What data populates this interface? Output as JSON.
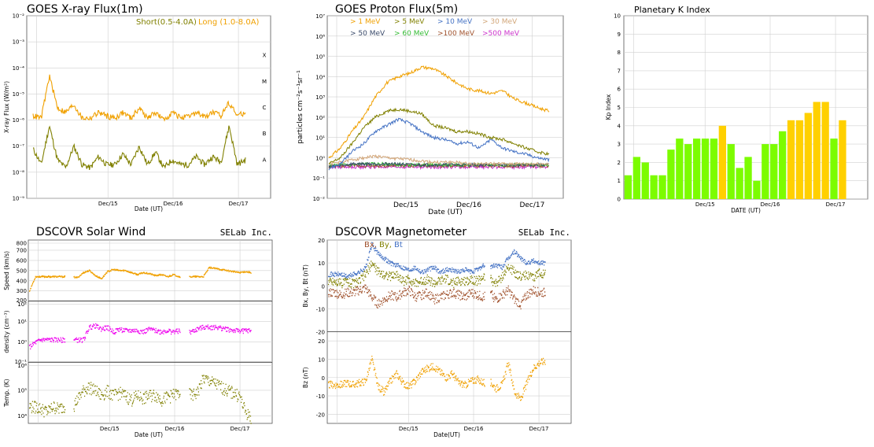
{
  "chart_data": [
    {
      "id": "xray",
      "type": "line",
      "title": "GOES X-ray Flux(1m)",
      "xlabel": "Date (UT)",
      "ylabel": "X-ray Flux (W/m²)",
      "scale": "log",
      "ylim": [
        1e-09,
        0.01
      ],
      "yticks": [
        "10⁻⁹",
        "10⁻⁸",
        "10⁻⁷",
        "10⁻⁶",
        "10⁻⁵",
        "10⁻⁴",
        "10⁻³",
        "10⁻²"
      ],
      "xticks": [
        "Dec/15",
        "Dec/16",
        "Dec/17"
      ],
      "class_labels": [
        "A",
        "B",
        "C",
        "M",
        "X"
      ],
      "legend_placement": "top-right",
      "series": [
        {
          "name": "Short(0.5-4.0A)",
          "color": "#808000",
          "values": [
            8e-08,
            2e-08,
            6e-07,
            3e-08,
            1.5e-08,
            1e-07,
            2e-08,
            1.5e-08,
            4e-08,
            2e-08,
            2e-08,
            5e-08,
            2e-08,
            1e-07,
            2e-08,
            6e-08,
            1.5e-08,
            3e-08,
            2e-08,
            2e-08,
            4e-08,
            2e-08,
            4e-08,
            2.5e-08,
            6e-07,
            2e-08,
            3e-08
          ]
        },
        {
          "name": "Long (1.0-8.0A)",
          "color": "#f0a000",
          "values": [
            1.5e-06,
            1.2e-06,
            5e-05,
            3e-06,
            2e-06,
            4e-06,
            1.2e-06,
            1.2e-06,
            2e-06,
            1.5e-06,
            1.2e-06,
            2e-06,
            1.2e-06,
            3e-06,
            1.2e-06,
            2e-06,
            1e-06,
            2e-06,
            1.3e-06,
            1.3e-06,
            2e-06,
            1.3e-06,
            2e-06,
            1.5e-06,
            5e-06,
            1.5e-06,
            2e-06
          ]
        }
      ]
    },
    {
      "id": "proton",
      "type": "line",
      "title": "GOES Proton Flux(5m)",
      "xlabel": "Date (UT)",
      "ylabel": "particles cm⁻²s⁻¹sr⁻¹",
      "scale": "log",
      "ylim": [
        0.01,
        10000000
      ],
      "yticks": [
        "10⁻²",
        "10⁻¹",
        "10⁰",
        "10¹",
        "10²",
        "10³",
        "10⁴",
        "10⁵",
        "10⁶",
        "10⁷"
      ],
      "xticks": [
        "Dec/15",
        "Dec/16",
        "Dec/17"
      ],
      "legend_placement": "top",
      "series": [
        {
          "name": "> 1 MeV",
          "color": "#f0a000",
          "values": [
            1,
            3,
            20,
            100,
            1000,
            5000,
            10000,
            15000,
            30000,
            25000,
            12000,
            5000,
            2500,
            2000,
            1500,
            2000,
            800,
            500,
            300,
            200
          ]
        },
        {
          "name": "> 5 MeV",
          "color": "#808000",
          "values": [
            0.5,
            1,
            5,
            30,
            100,
            200,
            250,
            200,
            150,
            40,
            30,
            20,
            20,
            15,
            10,
            8,
            5,
            3,
            2,
            1.5
          ]
        },
        {
          "name": "> 10 MeV",
          "color": "#4472c4",
          "values": [
            0.3,
            0.5,
            2,
            5,
            20,
            40,
            80,
            50,
            20,
            10,
            8,
            5,
            6,
            3,
            8,
            3,
            2,
            1.5,
            1,
            0.8
          ]
        },
        {
          "name": "> 30 MeV",
          "color": "#d2a679",
          "values": [
            0.5,
            0.6,
            0.8,
            1,
            1.2,
            1,
            0.9,
            0.8,
            0.7,
            0.6,
            0.6,
            0.6,
            0.5,
            0.5,
            0.5,
            0.5,
            0.5,
            0.5,
            0.5,
            0.5
          ]
        },
        {
          "name": "> 50 MeV",
          "color": "#3a4a6a",
          "values": [
            0.4,
            0.4,
            0.5,
            0.5,
            0.5,
            0.5,
            0.5,
            0.45,
            0.45,
            0.45,
            0.45,
            0.45,
            0.45,
            0.45,
            0.45,
            0.45,
            0.45,
            0.45,
            0.45,
            0.45
          ]
        },
        {
          "name": "> 60 MeV",
          "color": "#33bb33",
          "values": [
            0.4,
            0.45,
            0.45,
            0.5,
            0.5,
            0.5,
            0.45,
            0.45,
            0.45,
            0.45,
            0.45,
            0.45,
            0.45,
            0.45,
            0.45,
            0.45,
            0.45,
            0.45,
            0.45,
            0.45
          ]
        },
        {
          "name": ">100 MeV",
          "color": "#a0522d",
          "values": [
            0.35,
            0.4,
            0.4,
            0.4,
            0.4,
            0.4,
            0.4,
            0.4,
            0.4,
            0.4,
            0.4,
            0.4,
            0.4,
            0.4,
            0.4,
            0.4,
            0.4,
            0.4,
            0.4,
            0.4
          ]
        },
        {
          "name": ">500 MeV",
          "color": "#cc33cc",
          "values": [
            0.35,
            0.35,
            0.35,
            0.35,
            0.35,
            0.35,
            0.35,
            0.35,
            0.35,
            0.35,
            0.35,
            0.35,
            0.35,
            0.35,
            0.35,
            0.35,
            0.35,
            0.35,
            0.35,
            0.35
          ]
        }
      ]
    },
    {
      "id": "kp",
      "type": "bar",
      "title": "Planetary K Index",
      "xlabel": "DATE (UT)",
      "ylabel": "Kp Index",
      "ylim": [
        0,
        10
      ],
      "yticks": [
        "0",
        "1",
        "2",
        "3",
        "4",
        "5",
        "6",
        "7",
        "8",
        "9",
        "10"
      ],
      "xticks": [
        "Dec/15",
        "Dec/16",
        "Dec/17"
      ],
      "colors": {
        "quiet": "#7cfc00",
        "active": "#ffd000"
      },
      "values": [
        1.3,
        2.3,
        2.0,
        1.3,
        1.3,
        2.7,
        3.3,
        3.0,
        3.3,
        3.3,
        3.3,
        4.0,
        3.0,
        1.7,
        2.3,
        1.0,
        3.0,
        3.0,
        3.7,
        4.3,
        4.3,
        4.7,
        5.3,
        5.3,
        3.3,
        4.3
      ]
    },
    {
      "id": "solarwind",
      "type": "scatter",
      "title": "DSCOVR Solar Wind",
      "brand": "SELab Inc.",
      "xlabel": "Date (UT)",
      "xticks": [
        "Dec/15",
        "Dec/16",
        "Dec/17"
      ],
      "panels": [
        {
          "ylabel": "Speed (km/s)",
          "scale": "linear",
          "ylim": [
            200,
            800
          ],
          "yticks": [
            "200",
            "300",
            "400",
            "500",
            "600",
            "700",
            "800"
          ],
          "color": "#f0a000",
          "values": [
            300,
            440,
            440,
            440,
            440,
            440,
            440,
            440,
            430,
            480,
            500,
            450,
            420,
            490,
            510,
            500,
            500,
            480,
            460,
            480,
            470,
            450,
            460,
            440,
            460,
            440,
            430,
            440,
            440,
            440,
            530,
            520,
            510,
            500,
            490,
            480,
            490,
            480
          ]
        },
        {
          "ylabel": "density (cm⁻³)",
          "scale": "log",
          "ylim": [
            0.1,
            1000
          ],
          "yticks": [
            "10⁻¹",
            "10⁰",
            "10¹",
            "10²"
          ],
          "color": "#ee00ee",
          "values": [
            1,
            2,
            3,
            3,
            3,
            3,
            3,
            3,
            3,
            3,
            20,
            25,
            15,
            20,
            10,
            15,
            12,
            12,
            12,
            10,
            15,
            12,
            10,
            12,
            10,
            12,
            8,
            10,
            15,
            20,
            20,
            20,
            18,
            15,
            12,
            12,
            12,
            12
          ]
        },
        {
          "ylabel": "Temp. (K)",
          "scale": "log",
          "ylim": [
            30000,
            1000000
          ],
          "yticks": [
            "10⁴",
            "10⁵",
            "10⁶"
          ],
          "color": "#808000",
          "values": [
            80000,
            80000,
            70000,
            60000,
            80000,
            70000,
            90000,
            70000,
            120000,
            200000,
            250000,
            200000,
            150000,
            200000,
            150000,
            180000,
            150000,
            120000,
            150000,
            130000,
            150000,
            160000,
            120000,
            140000,
            160000,
            170000,
            200000,
            150000,
            180000,
            400000,
            350000,
            300000,
            250000,
            200000,
            180000,
            150000,
            60000,
            40000
          ]
        }
      ]
    },
    {
      "id": "magnetometer",
      "type": "scatter",
      "title": "DSCOVR Magnetometer",
      "brand": "SELab Inc.",
      "xlabel": "Date(UT)",
      "xticks": [
        "Dec/15",
        "Dec/16",
        "Dec/17"
      ],
      "legend": [
        "Bx,",
        "By,",
        "Bt"
      ],
      "panels": [
        {
          "ylabel": "Bx, By, Bt (nT)",
          "ylim": [
            -20,
            20
          ],
          "yticks": [
            "-20",
            "-10",
            "0",
            "10",
            "20"
          ],
          "series": [
            {
              "name": "Bt",
              "color": "#4472c4",
              "values": [
                5,
                5,
                5,
                4,
                5,
                6,
                8,
                18,
                14,
                12,
                10,
                9,
                8,
                7,
                8,
                6,
                7,
                8,
                6,
                7,
                7,
                6,
                7,
                6,
                7,
                9,
                8,
                9,
                8,
                12,
                15,
                12,
                10,
                11,
                10,
                10
              ]
            },
            {
              "name": "By",
              "color": "#808000",
              "values": [
                2,
                2,
                1,
                2,
                1,
                2,
                5,
                10,
                6,
                5,
                4,
                5,
                2,
                3,
                1,
                2,
                3,
                1,
                2,
                3,
                1,
                2,
                2,
                3,
                2,
                4,
                3,
                1,
                4,
                8,
                6,
                4,
                5,
                3,
                6,
                5
              ]
            },
            {
              "name": "Bx",
              "color": "#a0522d",
              "values": [
                -3,
                -3,
                -4,
                -3,
                -3,
                -2,
                -1,
                -5,
                -8,
                -6,
                -4,
                -5,
                -3,
                -2,
                -5,
                -4,
                -3,
                -6,
                -5,
                -4,
                -3,
                -4,
                -5,
                -3,
                -4,
                -5,
                -3,
                -6,
                -4,
                -2,
                -6,
                -8,
                -4,
                -2,
                -3,
                -3
              ]
            }
          ]
        },
        {
          "ylabel": "Bz (nT)",
          "ylim": [
            -25,
            25
          ],
          "yticks": [
            "-20",
            "-10",
            "0",
            "10",
            "20"
          ],
          "series": [
            {
              "name": "Bz",
              "color": "#f0a000",
              "values": [
                -4,
                -4,
                -4,
                -3,
                -4,
                -3,
                -2,
                10,
                -5,
                -8,
                -2,
                2,
                -3,
                -5,
                -2,
                3,
                5,
                6,
                3,
                0,
                2,
                -3,
                -4,
                -2,
                -1,
                -3,
                -2,
                -6,
                -4,
                8,
                -8,
                -12,
                -3,
                5,
                8,
                9
              ]
            }
          ]
        }
      ]
    }
  ]
}
